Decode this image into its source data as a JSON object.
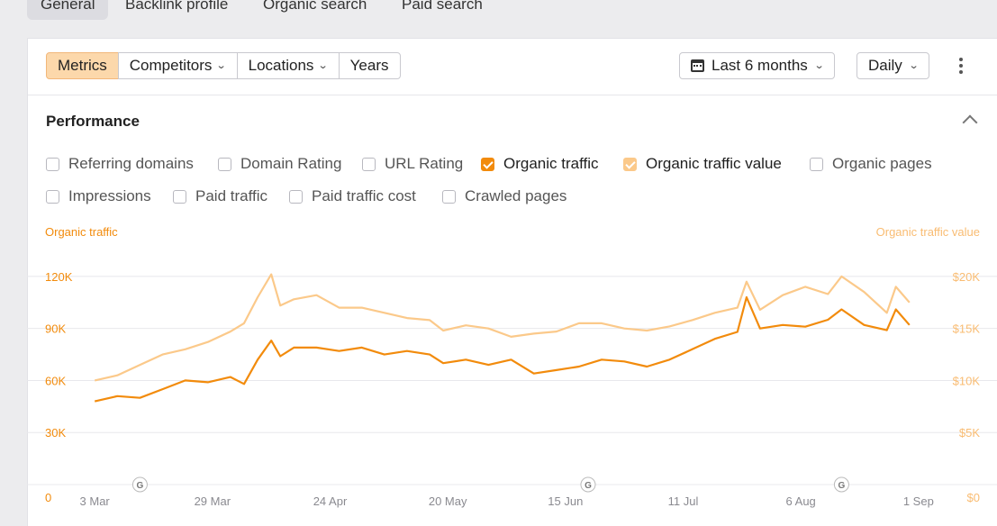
{
  "top_tabs": [
    "General",
    "Backlink profile",
    "Organic search",
    "Paid search"
  ],
  "toolbar": {
    "metrics": "Metrics",
    "competitors": "Competitors",
    "locations": "Locations",
    "years": "Years",
    "range": "Last 6 months",
    "interval": "Daily"
  },
  "performance": {
    "title": "Performance",
    "checkboxes": [
      {
        "label": "Referring domains",
        "checked": false
      },
      {
        "label": "Domain Rating",
        "checked": false
      },
      {
        "label": "URL Rating",
        "checked": false
      },
      {
        "label": "Organic traffic",
        "checked": true
      },
      {
        "label": "Organic traffic value",
        "checked": true
      },
      {
        "label": "Organic pages",
        "checked": false
      },
      {
        "label": "Impressions",
        "checked": false
      },
      {
        "label": "Paid traffic",
        "checked": false
      },
      {
        "label": "Paid traffic cost",
        "checked": false
      },
      {
        "label": "Crawled pages",
        "checked": false
      }
    ]
  },
  "colors": {
    "organic_traffic": "#f28b0c",
    "organic_traffic_value": "#fbc98a",
    "grid": "#e8e8ec"
  },
  "chart_data": {
    "type": "line",
    "ylabel": "Organic traffic",
    "y2label": "Organic traffic value",
    "ylim": [
      0,
      135000
    ],
    "y2lim": [
      0,
      22500
    ],
    "yticks": [
      "0",
      "30K",
      "60K",
      "90K",
      "120K"
    ],
    "y2ticks": [
      "$0",
      "$5K",
      "$10K",
      "$15K",
      "$20K"
    ],
    "xlim": [
      "2024-02-26",
      "2024-09-07"
    ],
    "xticks": [
      {
        "date": "2024-03-03",
        "label": "3 Mar"
      },
      {
        "date": "2024-03-29",
        "label": "29 Mar"
      },
      {
        "date": "2024-04-24",
        "label": "24 Apr"
      },
      {
        "date": "2024-05-20",
        "label": "20 May"
      },
      {
        "date": "2024-06-15",
        "label": "15 Jun"
      },
      {
        "date": "2024-07-11",
        "label": "11 Jul"
      },
      {
        "date": "2024-08-06",
        "label": "6 Aug"
      },
      {
        "date": "2024-09-01",
        "label": "1 Sep"
      }
    ],
    "annotations": [
      {
        "date": "2024-03-13",
        "label": "G"
      },
      {
        "date": "2024-06-20",
        "label": "G"
      },
      {
        "date": "2024-08-15",
        "label": "G"
      }
    ],
    "legend": "checkboxes-above",
    "grid": true,
    "series": [
      {
        "name": "Organic traffic",
        "axis": "left",
        "points": [
          [
            "2024-03-03",
            48000
          ],
          [
            "2024-03-08",
            51000
          ],
          [
            "2024-03-13",
            50000
          ],
          [
            "2024-03-18",
            55000
          ],
          [
            "2024-03-23",
            60000
          ],
          [
            "2024-03-28",
            59000
          ],
          [
            "2024-04-02",
            62000
          ],
          [
            "2024-04-05",
            58000
          ],
          [
            "2024-04-08",
            72000
          ],
          [
            "2024-04-11",
            83000
          ],
          [
            "2024-04-13",
            74000
          ],
          [
            "2024-04-16",
            79000
          ],
          [
            "2024-04-21",
            79000
          ],
          [
            "2024-04-26",
            77000
          ],
          [
            "2024-05-01",
            79000
          ],
          [
            "2024-05-06",
            75000
          ],
          [
            "2024-05-11",
            77000
          ],
          [
            "2024-05-16",
            75000
          ],
          [
            "2024-05-19",
            70000
          ],
          [
            "2024-05-24",
            72000
          ],
          [
            "2024-05-29",
            69000
          ],
          [
            "2024-06-03",
            72000
          ],
          [
            "2024-06-08",
            64000
          ],
          [
            "2024-06-13",
            66000
          ],
          [
            "2024-06-18",
            68000
          ],
          [
            "2024-06-23",
            72000
          ],
          [
            "2024-06-28",
            71000
          ],
          [
            "2024-07-03",
            68000
          ],
          [
            "2024-07-08",
            72000
          ],
          [
            "2024-07-13",
            78000
          ],
          [
            "2024-07-18",
            84000
          ],
          [
            "2024-07-23",
            88000
          ],
          [
            "2024-07-25",
            108000
          ],
          [
            "2024-07-28",
            90000
          ],
          [
            "2024-08-02",
            92000
          ],
          [
            "2024-08-07",
            91000
          ],
          [
            "2024-08-12",
            95000
          ],
          [
            "2024-08-15",
            101000
          ],
          [
            "2024-08-20",
            92000
          ],
          [
            "2024-08-25",
            89000
          ],
          [
            "2024-08-27",
            101000
          ],
          [
            "2024-08-30",
            92000
          ]
        ]
      },
      {
        "name": "Organic traffic value",
        "axis": "right",
        "points": [
          [
            "2024-03-03",
            10000
          ],
          [
            "2024-03-08",
            10500
          ],
          [
            "2024-03-13",
            11500
          ],
          [
            "2024-03-18",
            12500
          ],
          [
            "2024-03-23",
            13000
          ],
          [
            "2024-03-28",
            13700
          ],
          [
            "2024-04-02",
            14700
          ],
          [
            "2024-04-05",
            15500
          ],
          [
            "2024-04-08",
            18000
          ],
          [
            "2024-04-11",
            20200
          ],
          [
            "2024-04-13",
            17200
          ],
          [
            "2024-04-16",
            17800
          ],
          [
            "2024-04-21",
            18200
          ],
          [
            "2024-04-26",
            17000
          ],
          [
            "2024-05-01",
            17000
          ],
          [
            "2024-05-06",
            16500
          ],
          [
            "2024-05-11",
            16000
          ],
          [
            "2024-05-16",
            15800
          ],
          [
            "2024-05-19",
            14800
          ],
          [
            "2024-05-24",
            15300
          ],
          [
            "2024-05-29",
            15000
          ],
          [
            "2024-06-03",
            14200
          ],
          [
            "2024-06-08",
            14500
          ],
          [
            "2024-06-13",
            14700
          ],
          [
            "2024-06-18",
            15500
          ],
          [
            "2024-06-23",
            15500
          ],
          [
            "2024-06-28",
            15000
          ],
          [
            "2024-07-03",
            14800
          ],
          [
            "2024-07-08",
            15200
          ],
          [
            "2024-07-13",
            15800
          ],
          [
            "2024-07-18",
            16500
          ],
          [
            "2024-07-23",
            17000
          ],
          [
            "2024-07-25",
            19500
          ],
          [
            "2024-07-28",
            16800
          ],
          [
            "2024-08-02",
            18200
          ],
          [
            "2024-08-07",
            19000
          ],
          [
            "2024-08-12",
            18300
          ],
          [
            "2024-08-15",
            20000
          ],
          [
            "2024-08-20",
            18500
          ],
          [
            "2024-08-25",
            16500
          ],
          [
            "2024-08-27",
            19000
          ],
          [
            "2024-08-30",
            17500
          ]
        ]
      }
    ]
  }
}
